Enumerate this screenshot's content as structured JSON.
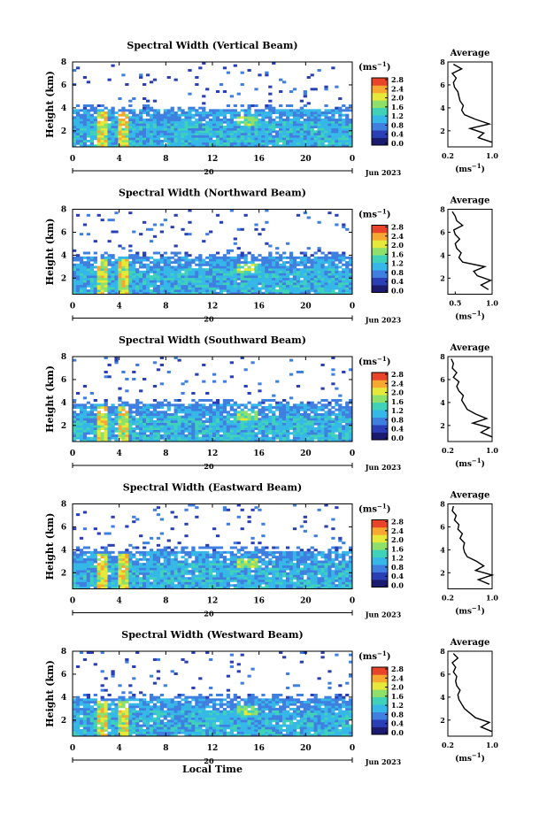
{
  "figure": {
    "date_label": "Jun 2023",
    "date_tick": "20",
    "xlabel": "Local Time",
    "colorbar_unit": "(ms",
    "colorbar_unit_exp": "−1",
    "colorbar_ticks": [
      "0.0",
      "0.4",
      "0.8",
      "1.2",
      "1.6",
      "2.0",
      "2.4",
      "2.8"
    ],
    "profile_title": "Average",
    "profile_xunit": "(ms",
    "profile_xunit_exp": "−1",
    "colors": {
      "colormap": [
        "#1a1a6e",
        "#2a3fb5",
        "#3f7fe0",
        "#35b8e8",
        "#3fd2b8",
        "#8fe06a",
        "#e6e83a",
        "#f7a830",
        "#e8442a"
      ]
    }
  },
  "chart_data": [
    {
      "type": "heatmap",
      "title": "Spectral Width (Vertical Beam)",
      "ylabel": "Height (km)",
      "x_ticks": [
        "0",
        "4",
        "8",
        "12",
        "16",
        "20",
        "0"
      ],
      "y_ticks": [
        "2",
        "4",
        "6",
        "8"
      ],
      "xlim": [
        0,
        24
      ],
      "ylim": [
        0.6,
        8.0
      ],
      "colorbar_range": [
        0.0,
        2.8
      ],
      "profile": {
        "title": "Average",
        "x_ticks": [
          "0.2",
          "1.0"
        ],
        "xlim": [
          0.2,
          1.0
        ],
        "y_ticks": [
          "2",
          "4",
          "6",
          "8"
        ],
        "height": [
          1.0,
          1.4,
          1.8,
          2.2,
          2.6,
          3.0,
          3.4,
          3.8,
          4.2,
          4.6,
          5.0,
          5.4,
          5.8,
          6.2,
          6.6,
          7.0,
          7.4,
          7.8
        ],
        "width": [
          1.0,
          0.75,
          0.85,
          0.6,
          0.95,
          0.7,
          0.5,
          0.45,
          0.48,
          0.42,
          0.4,
          0.38,
          0.32,
          0.3,
          0.35,
          0.28,
          0.45,
          0.3
        ]
      }
    },
    {
      "type": "heatmap",
      "title": "Spectral Width (Northward Beam)",
      "ylabel": "Height (km)",
      "x_ticks": [
        "0",
        "4",
        "8",
        "12",
        "16",
        "20",
        "0"
      ],
      "y_ticks": [
        "2",
        "4",
        "6",
        "8"
      ],
      "xlim": [
        0,
        24
      ],
      "ylim": [
        0.6,
        8.0
      ],
      "colorbar_range": [
        0.0,
        2.8
      ],
      "profile": {
        "title": "Average",
        "x_ticks": [
          "0.5",
          "1.0"
        ],
        "xlim": [
          0.4,
          1.0
        ],
        "y_ticks": [
          "2",
          "4",
          "6",
          "8"
        ],
        "height": [
          1.0,
          1.4,
          1.8,
          2.2,
          2.6,
          3.0,
          3.4,
          3.8,
          4.2,
          4.6,
          5.0,
          5.4,
          5.8,
          6.2,
          6.6,
          7.0,
          7.4,
          7.8
        ],
        "width": [
          0.95,
          0.85,
          0.98,
          0.8,
          0.75,
          0.9,
          0.6,
          0.55,
          0.58,
          0.52,
          0.5,
          0.56,
          0.5,
          0.48,
          0.6,
          0.52,
          0.5,
          0.46
        ]
      }
    },
    {
      "type": "heatmap",
      "title": "Spectral Width (Southward Beam)",
      "ylabel": "Height (km)",
      "x_ticks": [
        "0",
        "4",
        "8",
        "12",
        "16",
        "20",
        "0"
      ],
      "y_ticks": [
        "2",
        "4",
        "6",
        "8"
      ],
      "xlim": [
        0,
        24
      ],
      "ylim": [
        0.6,
        8.0
      ],
      "colorbar_range": [
        0.0,
        2.8
      ],
      "profile": {
        "title": "Average",
        "x_ticks": [
          "0.2",
          "1.0"
        ],
        "xlim": [
          0.2,
          1.0
        ],
        "y_ticks": [
          "2",
          "4",
          "6",
          "8"
        ],
        "height": [
          1.0,
          1.4,
          1.8,
          2.2,
          2.6,
          3.0,
          3.4,
          3.8,
          4.2,
          4.6,
          5.0,
          5.4,
          5.8,
          6.2,
          6.6,
          7.0,
          7.4,
          7.8
        ],
        "width": [
          1.0,
          0.8,
          0.95,
          0.65,
          0.9,
          0.7,
          0.55,
          0.5,
          0.45,
          0.48,
          0.4,
          0.36,
          0.4,
          0.3,
          0.36,
          0.28,
          0.3,
          0.26
        ]
      }
    },
    {
      "type": "heatmap",
      "title": "Spectral Width (Eastward Beam)",
      "ylabel": "Height (km)",
      "x_ticks": [
        "0",
        "4",
        "8",
        "12",
        "16",
        "20",
        "0"
      ],
      "y_ticks": [
        "2",
        "4",
        "6",
        "8"
      ],
      "xlim": [
        0,
        24
      ],
      "ylim": [
        0.6,
        8.0
      ],
      "colorbar_range": [
        0.0,
        2.8
      ],
      "profile": {
        "title": "Average",
        "x_ticks": [
          "0.2",
          "1.0"
        ],
        "xlim": [
          0.2,
          1.0
        ],
        "y_ticks": [
          "2",
          "4",
          "6",
          "8"
        ],
        "height": [
          1.0,
          1.4,
          1.8,
          2.2,
          2.6,
          3.0,
          3.4,
          3.8,
          4.2,
          4.6,
          5.0,
          5.4,
          5.8,
          6.2,
          6.6,
          7.0,
          7.4,
          7.8
        ],
        "width": [
          0.95,
          0.75,
          1.0,
          0.7,
          0.85,
          0.72,
          0.55,
          0.5,
          0.48,
          0.5,
          0.42,
          0.46,
          0.38,
          0.4,
          0.32,
          0.35,
          0.28,
          0.3
        ]
      }
    },
    {
      "type": "heatmap",
      "title": "Spectral Width (Westward Beam)",
      "ylabel": "Height (km)",
      "x_ticks": [
        "0",
        "4",
        "8",
        "12",
        "16",
        "20",
        "0"
      ],
      "y_ticks": [
        "2",
        "4",
        "6",
        "8"
      ],
      "xlim": [
        0,
        24
      ],
      "ylim": [
        0.6,
        8.0
      ],
      "colorbar_range": [
        0.0,
        2.8
      ],
      "profile": {
        "title": "Average",
        "x_ticks": [
          "0.2",
          "1.0"
        ],
        "xlim": [
          0.2,
          1.0
        ],
        "y_ticks": [
          "2",
          "4",
          "6",
          "8"
        ],
        "height": [
          1.0,
          1.4,
          1.8,
          2.2,
          2.6,
          3.0,
          3.4,
          3.8,
          4.2,
          4.6,
          5.0,
          5.4,
          5.8,
          6.2,
          6.6,
          7.0,
          7.4,
          7.8
        ],
        "width": [
          1.0,
          0.8,
          0.95,
          0.7,
          0.6,
          0.5,
          0.45,
          0.4,
          0.38,
          0.42,
          0.36,
          0.34,
          0.36,
          0.3,
          0.34,
          0.28,
          0.38,
          0.3
        ]
      }
    }
  ]
}
